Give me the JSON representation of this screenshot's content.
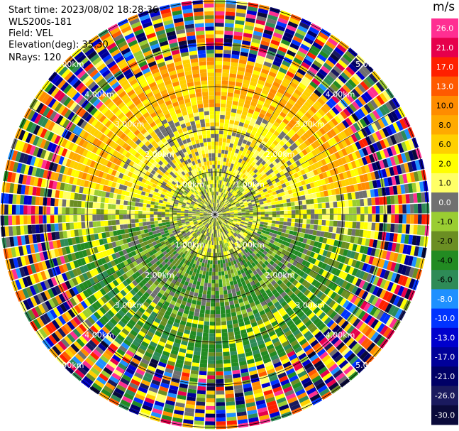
{
  "header": {
    "start_time": "Start time: 2023/08/02 18:28:36",
    "instrument": "WLS200s-181",
    "field": "Field: VEL",
    "elevation": "Elevation(deg): 35.30",
    "nrays": "NRays: 120"
  },
  "colorbar": {
    "unit": "m/s",
    "levels": [
      {
        "label": "26.0",
        "color": "#ff2f92"
      },
      {
        "label": "21.0",
        "color": "#e6004c"
      },
      {
        "label": "17.0",
        "color": "#ff2000"
      },
      {
        "label": "13.0",
        "color": "#ff5a00"
      },
      {
        "label": "10.0",
        "color": "#ff8c00"
      },
      {
        "label": "8.0",
        "color": "#ffaa00"
      },
      {
        "label": "6.0",
        "color": "#ffd000"
      },
      {
        "label": "2.0",
        "color": "#ffff00"
      },
      {
        "label": "1.0",
        "color": "#ffff66"
      },
      {
        "label": "0.0",
        "color": "#707070"
      },
      {
        "label": "-1.0",
        "color": "#9acd32"
      },
      {
        "label": "-2.0",
        "color": "#6b8e23"
      },
      {
        "label": "-4.0",
        "color": "#228b22"
      },
      {
        "label": "-6.0",
        "color": "#2e8b57"
      },
      {
        "label": "-8.0",
        "color": "#1e90ff"
      },
      {
        "label": "-10.0",
        "color": "#0033ff"
      },
      {
        "label": "-13.0",
        "color": "#0000cd"
      },
      {
        "label": "-17.0",
        "color": "#000099"
      },
      {
        "label": "-21.0",
        "color": "#000066"
      },
      {
        "label": "-26.0",
        "color": "#1a1a5e"
      },
      {
        "label": "-30.0",
        "color": "#0a0a3a"
      }
    ]
  },
  "chart_data": {
    "type": "heatmap",
    "projection": "polar PPI",
    "field": "VEL",
    "units": "m/s",
    "nrays": 120,
    "range_rings_km": [
      1.0,
      2.0,
      3.0,
      4.0,
      5.0
    ],
    "ring_labels": [
      "1.00km",
      "2.00km",
      "3.00km",
      "4.00km",
      "5.00km"
    ],
    "max_range_km": 5.0,
    "data_description_by_range": [
      {
        "range_km": [
          0.0,
          1.0
        ],
        "dominant": "mixed grey/yellow/green near zero"
      },
      {
        "range_km": [
          1.0,
          2.5
        ],
        "north": "yellow (+1 to +6)",
        "south": "green (-2 to -6)"
      },
      {
        "range_km": [
          2.5,
          3.5
        ],
        "north": "orange/yellow (+6 to +10)",
        "south": "green (-4 to -6)"
      },
      {
        "range_km": [
          3.5,
          5.0
        ],
        "dominant": "noisy all colors"
      }
    ]
  }
}
